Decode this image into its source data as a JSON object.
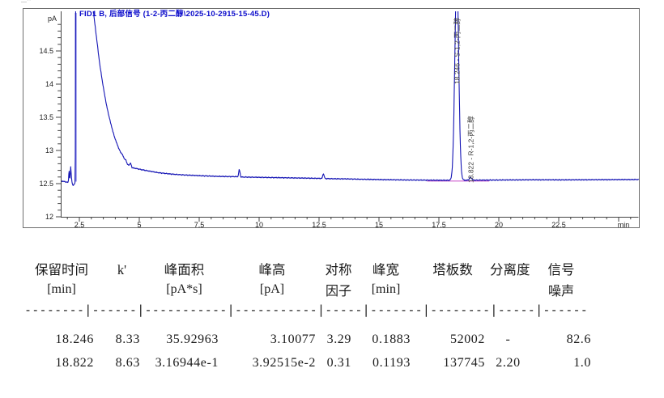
{
  "scan_mark": "—''",
  "chart_data": {
    "type": "line",
    "title": "FID1 B, 后部信号 (1-2-丙二醇\\2025-10-2915-15-45.D)",
    "x_label": "min",
    "y_label": "pA",
    "x_range": [
      1.74,
      25.84
    ],
    "y_range": [
      12,
      15.1
    ],
    "x_ticks": [
      2.5,
      5,
      7.5,
      10,
      12.5,
      15,
      17.5,
      20,
      22.5
    ],
    "y_ticks": [
      12,
      12.5,
      13,
      13.5,
      14,
      14.5
    ],
    "grid": false,
    "legend": "none",
    "series": [
      {
        "name": "FID1 B 后部信号",
        "color": "#1515b5"
      }
    ],
    "baseline_pa": 12.55,
    "solvent_spike_rt": 2.35,
    "integration_baseline": {
      "from_rt": 17.0,
      "to_rt": 19.6,
      "color": "#cf5fcf"
    },
    "peaks": [
      {
        "rt": 18.246,
        "height_pa": 3.10077,
        "sigma_min": 0.08,
        "label": "18.246 - S-1,2-丙二醇"
      },
      {
        "rt": 18.822,
        "height_pa": 0.0392515,
        "sigma_min": 0.05,
        "label": "18.822 - R-1,2-丙二醇"
      }
    ],
    "trace_anchors": [
      [
        1.74,
        12.54
      ],
      [
        1.9,
        12.53
      ],
      [
        2.0,
        12.52
      ],
      [
        2.04,
        12.52
      ],
      [
        2.07,
        12.72
      ],
      [
        2.1,
        12.55
      ],
      [
        2.14,
        12.75
      ],
      [
        2.18,
        12.55
      ],
      [
        2.23,
        12.47
      ],
      [
        2.29,
        12.49
      ],
      [
        2.33,
        12.52
      ],
      [
        2.345,
        15.4
      ],
      [
        2.92,
        15.4
      ],
      [
        3.05,
        15.2
      ],
      [
        3.2,
        14.75
      ],
      [
        3.35,
        14.3
      ],
      [
        3.5,
        13.95
      ],
      [
        3.65,
        13.65
      ],
      [
        3.8,
        13.42
      ],
      [
        3.95,
        13.22
      ],
      [
        4.1,
        13.07
      ],
      [
        4.22,
        12.97
      ],
      [
        4.3,
        12.94
      ],
      [
        4.36,
        12.88
      ],
      [
        4.44,
        12.86
      ],
      [
        4.5,
        12.79
      ],
      [
        4.58,
        12.78
      ],
      [
        4.64,
        12.81
      ],
      [
        4.7,
        12.74
      ],
      [
        4.85,
        12.73
      ],
      [
        5.1,
        12.71
      ],
      [
        5.4,
        12.69
      ],
      [
        5.8,
        12.665
      ],
      [
        6.3,
        12.645
      ],
      [
        6.9,
        12.63
      ],
      [
        7.5,
        12.62
      ],
      [
        8.2,
        12.61
      ],
      [
        9.0,
        12.605
      ],
      [
        9.12,
        12.605
      ],
      [
        9.17,
        12.72
      ],
      [
        9.24,
        12.6
      ],
      [
        10.0,
        12.595
      ],
      [
        10.8,
        12.59
      ],
      [
        11.6,
        12.585
      ],
      [
        12.4,
        12.58
      ],
      [
        12.62,
        12.578
      ],
      [
        12.68,
        12.655
      ],
      [
        12.75,
        12.576
      ],
      [
        13.5,
        12.572
      ],
      [
        14.3,
        12.566
      ],
      [
        15.2,
        12.56
      ],
      [
        16.2,
        12.555
      ],
      [
        17.2,
        12.552
      ],
      [
        18.0,
        12.55
      ],
      [
        19.4,
        12.553
      ],
      [
        20.5,
        12.556
      ],
      [
        21.5,
        12.558
      ],
      [
        22.5,
        12.557
      ],
      [
        23.5,
        12.558
      ],
      [
        24.5,
        12.56
      ],
      [
        25.84,
        12.562
      ]
    ]
  },
  "table": {
    "columns": [
      {
        "h1": "保留时间",
        "h2": "[min]"
      },
      {
        "h1": "k'",
        "h2": ""
      },
      {
        "h1": "峰面积",
        "h2": "[pA*s]"
      },
      {
        "h1": "峰高",
        "h2": "[pA]"
      },
      {
        "h1": "对称",
        "h2": "因子"
      },
      {
        "h1": "峰宽",
        "h2": "[min]"
      },
      {
        "h1": "塔板数",
        "h2": ""
      },
      {
        "h1": "分离度",
        "h2": ""
      },
      {
        "h1": "信号",
        "h2": "噪声"
      }
    ],
    "separator": "--------|------|-----------|-----------|-----|-------|--------|-----|------",
    "rows": [
      [
        "18.246",
        "8.33",
        "35.92963",
        "3.10077",
        "3.29",
        "0.1883",
        "52002",
        "-",
        "82.6"
      ],
      [
        "18.822",
        "8.63",
        "3.16944e-1",
        "3.92515e-2",
        "0.31",
        "0.1193",
        "137745",
        "2.20",
        "1.0"
      ]
    ]
  }
}
